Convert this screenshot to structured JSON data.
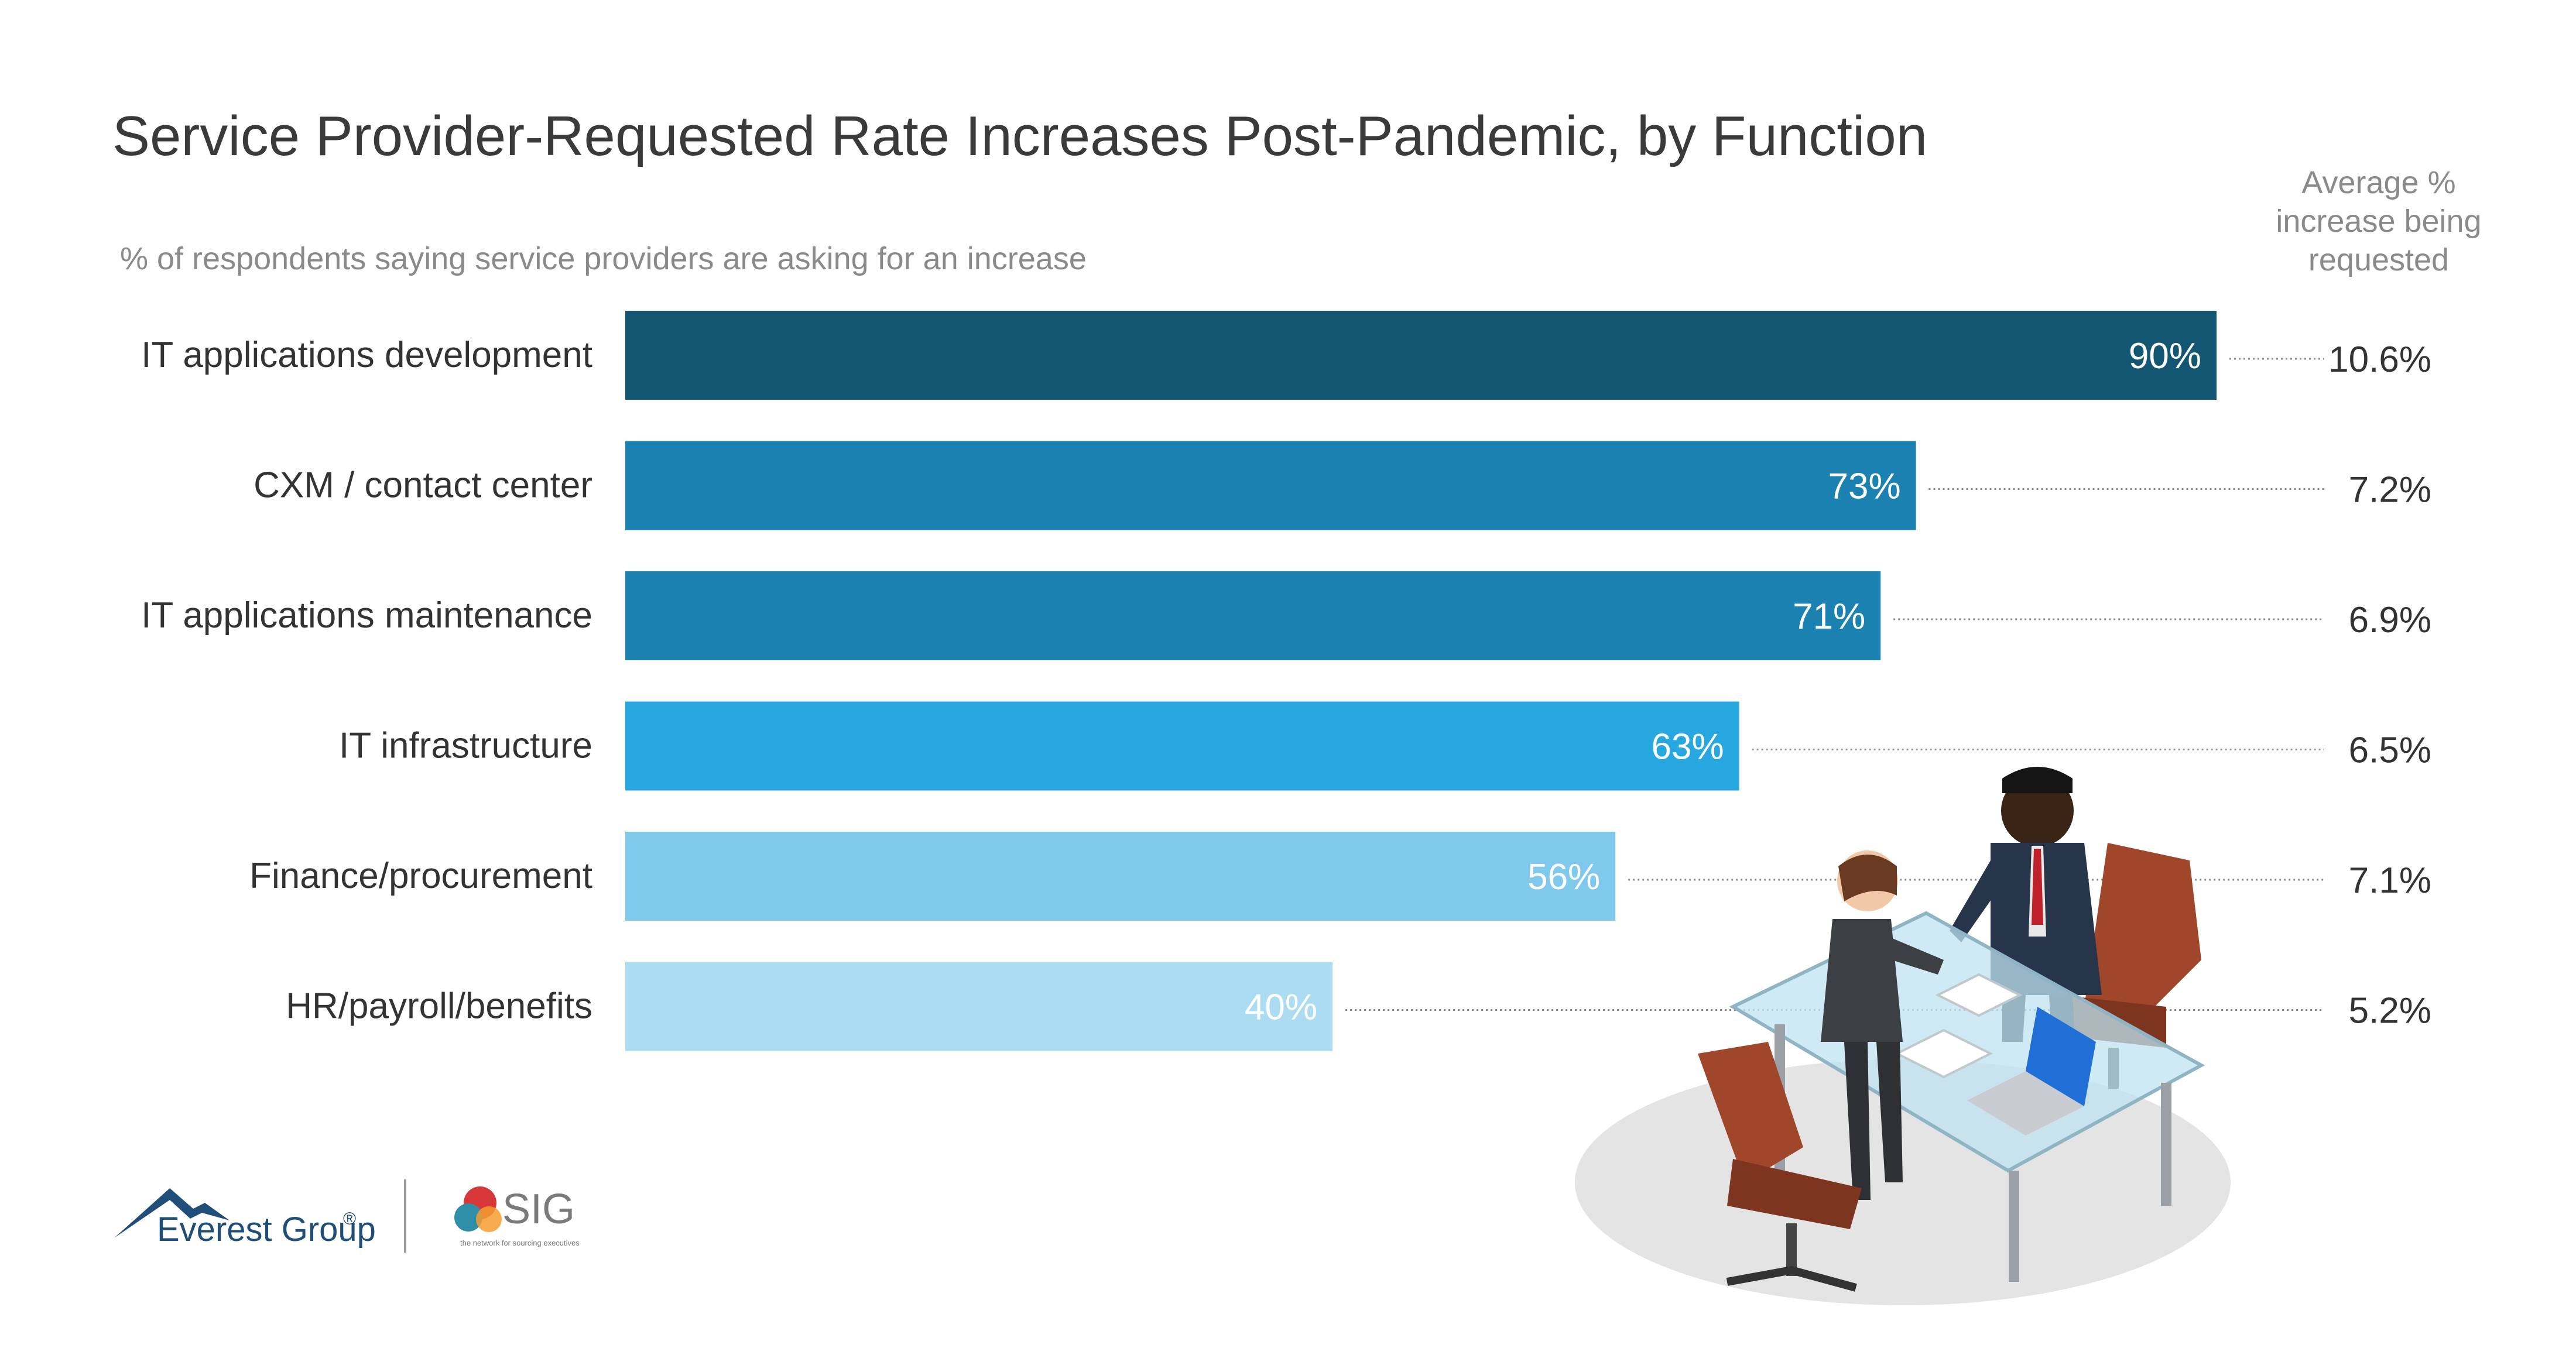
{
  "chart_data": {
    "type": "bar",
    "orientation": "horizontal",
    "title": "Service Provider-Requested Rate Increases Post-Pandemic, by Function",
    "subtitle": "% of respondents saying service providers are asking for an increase",
    "secondary_header": [
      "Average %",
      "increase being",
      "requested"
    ],
    "categories": [
      "IT applications development",
      "CXM / contact center",
      "IT applications maintenance",
      "IT infrastructure",
      "Finance/procurement",
      "HR/payroll/benefits"
    ],
    "values": [
      90,
      73,
      71,
      63,
      56,
      40
    ],
    "value_labels": [
      "90%",
      "73%",
      "71%",
      "63%",
      "56%",
      "40%"
    ],
    "average_increase": [
      "10.6%",
      "7.2%",
      "6.9%",
      "6.5%",
      "7.1%",
      "5.2%"
    ],
    "xlim": [
      0,
      100
    ],
    "grid": false,
    "bar_colors": [
      "#135672",
      "#1b81b0",
      "#1b81b0",
      "#27a7e0",
      "#7ec9ec",
      "#abdcf2"
    ]
  },
  "brand": {
    "everest": "Everest Group",
    "everest_mark": "®",
    "sig": "SIG",
    "sig_tagline": "the network for sourcing executives"
  },
  "colors": {
    "title": "#3a3a3a",
    "subtitle": "#8a8a8a",
    "label": "#333333"
  }
}
